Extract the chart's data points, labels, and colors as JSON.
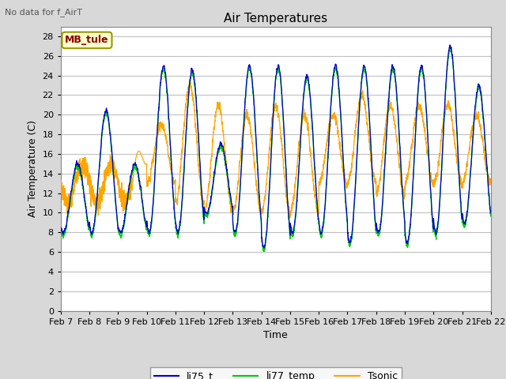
{
  "title": "Air Temperatures",
  "ylabel": "Air Temperature (C)",
  "xlabel": "Time",
  "annotation": "No data for f_AirT",
  "legend_label": "MB_tule",
  "series_labels": [
    "li75_t",
    "li77_temp",
    "Tsonic"
  ],
  "series_colors": [
    "#0000cc",
    "#00cc00",
    "#ffa500"
  ],
  "ylim": [
    0,
    29
  ],
  "yticks": [
    0,
    2,
    4,
    6,
    8,
    10,
    12,
    14,
    16,
    18,
    20,
    22,
    24,
    26,
    28
  ],
  "n_days": 15,
  "xstart_day": 7,
  "xend_day": 22,
  "fig_width": 6.4,
  "fig_height": 4.8,
  "dpi": 100,
  "title_fontsize": 11,
  "label_fontsize": 9,
  "tick_fontsize": 8
}
